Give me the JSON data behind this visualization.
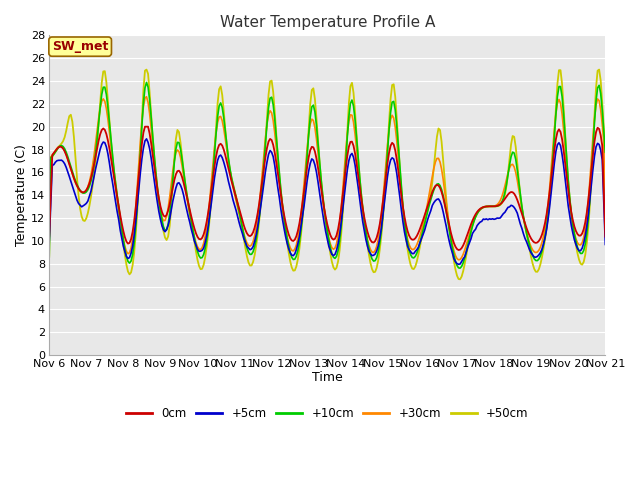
{
  "title": "Water Temperature Profile A",
  "xlabel": "Time",
  "ylabel": "Temperature (C)",
  "ylim": [
    0,
    28
  ],
  "xlim": [
    0,
    360
  ],
  "plot_bg": "#e8e8e8",
  "grid_color": "#ffffff",
  "annotation_text": "SW_met",
  "annotation_bg": "#ffff99",
  "annotation_border": "#996600",
  "annotation_text_color": "#990000",
  "xtick_labels": [
    "Nov 6",
    "Nov 7",
    "Nov 8",
    "Nov 9",
    "Nov 10",
    "Nov 11",
    "Nov 12",
    "Nov 13",
    "Nov 14",
    "Nov 15",
    "Nov 16",
    "Nov 17",
    "Nov 18",
    "Nov 19",
    "Nov 20",
    "Nov 21"
  ],
  "xtick_positions": [
    0,
    24,
    48,
    72,
    96,
    120,
    144,
    168,
    192,
    216,
    240,
    264,
    288,
    312,
    336,
    360
  ],
  "ytick_positions": [
    0,
    2,
    4,
    6,
    8,
    10,
    12,
    14,
    16,
    18,
    20,
    22,
    24,
    26,
    28
  ],
  "legend_entries": [
    "0cm",
    "+5cm",
    "+10cm",
    "+30cm",
    "+50cm"
  ],
  "legend_colors": [
    "#cc0000",
    "#0000cc",
    "#00cc00",
    "#ff8800",
    "#cccc00"
  ]
}
